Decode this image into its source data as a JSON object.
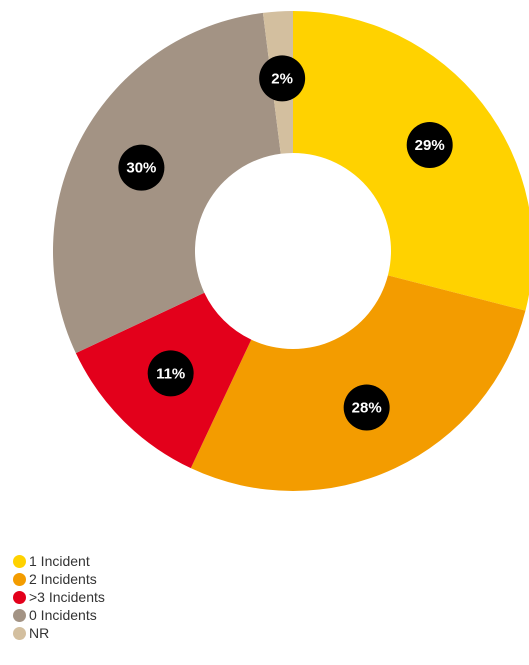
{
  "chart_data": {
    "type": "pie",
    "donut": true,
    "start_angle_deg": 0,
    "direction": "clockwise",
    "slices": [
      {
        "label": "1 Incident",
        "value": 29,
        "value_label": "29%",
        "color": "#FFD200"
      },
      {
        "label": "2 Incidents",
        "value": 28,
        "value_label": "28%",
        "color": "#F39C00"
      },
      {
        "label": ">3 Incidents",
        "value": 11,
        "value_label": "11%",
        "color": "#E3001B"
      },
      {
        "label": "0 Incidents",
        "value": 30,
        "value_label": "30%",
        "color": "#A39384"
      },
      {
        "label": "NR",
        "value": 2,
        "value_label": "2%",
        "color": "#D3BF9F"
      }
    ],
    "legend_position": "bottom-left",
    "label_badge_color": "#000000"
  }
}
